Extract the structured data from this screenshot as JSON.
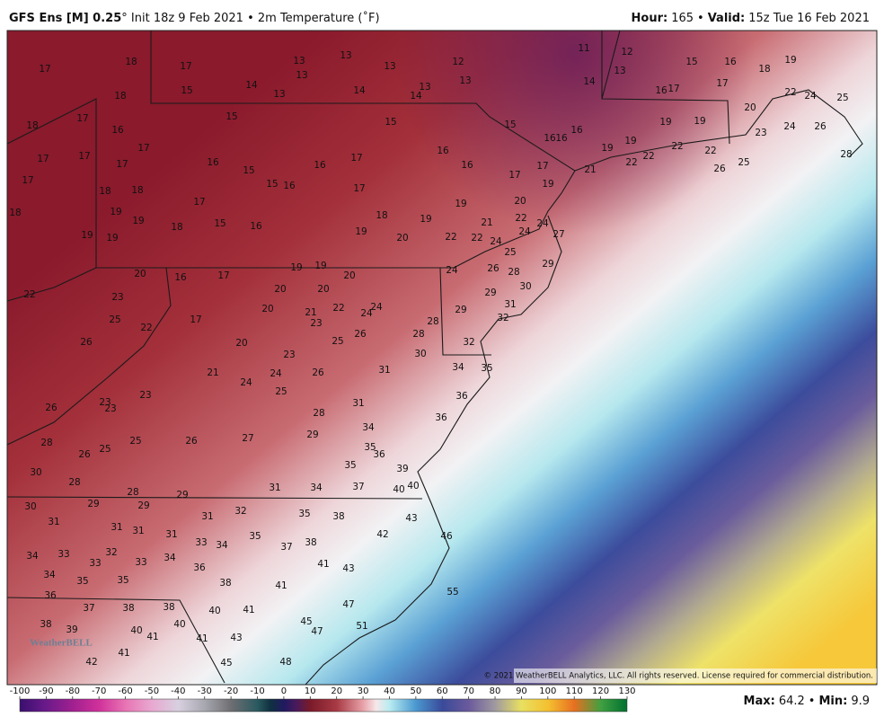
{
  "header": {
    "model": "GFS Ens [M] 0.25",
    "title": "° Init 18z 9 Feb 2021 • 2m Temperature (˚F)",
    "hour_label": "Hour:",
    "hour_value": "165",
    "separator": "•",
    "valid_label": "Valid:",
    "valid_value": "15z Tue 16 Feb 2021"
  },
  "map_labels": [
    17,
    18,
    17,
    15,
    14,
    13,
    13,
    13,
    13,
    13,
    14,
    14,
    13,
    12,
    13,
    11,
    12,
    13,
    14,
    15,
    16,
    18,
    19,
    17,
    17,
    16,
    22,
    24,
    25,
    18,
    17,
    16,
    18,
    17,
    15,
    15,
    15,
    16,
    16,
    16,
    19,
    19,
    20,
    24,
    26,
    23,
    17,
    17,
    17,
    16,
    15,
    16,
    17,
    16,
    16,
    17,
    17,
    19,
    21,
    19,
    19,
    22,
    22,
    22,
    22,
    25,
    26,
    28,
    17,
    18,
    18,
    17,
    15,
    16,
    17,
    18,
    19,
    19,
    15,
    16,
    18,
    19,
    19,
    21,
    20,
    22,
    24,
    19,
    19,
    18,
    19,
    20,
    22,
    22,
    24,
    25,
    27,
    24,
    20,
    16,
    17,
    19,
    19,
    20,
    24,
    26,
    28,
    29,
    22,
    23,
    20,
    20,
    29,
    30,
    31,
    25,
    22,
    17,
    20,
    21,
    22,
    23,
    24,
    24,
    28,
    28,
    29,
    32,
    26,
    20,
    23,
    25,
    26,
    30,
    32,
    21,
    24,
    24,
    26,
    31,
    34,
    35,
    25,
    23,
    23,
    23,
    26,
    31,
    36,
    28,
    36,
    28,
    25,
    25,
    26,
    27,
    29,
    34,
    26,
    35,
    36,
    35,
    39,
    30,
    28,
    28,
    29,
    29,
    29,
    31,
    34,
    37,
    40,
    40,
    30,
    31,
    31,
    31,
    31,
    32,
    35,
    38,
    43,
    31,
    33,
    34,
    35,
    42,
    46,
    34,
    33,
    32,
    33,
    33,
    34,
    36,
    37,
    38,
    41,
    43,
    34,
    35,
    35,
    38,
    41,
    36,
    55,
    37,
    38,
    38,
    40,
    41,
    47,
    38,
    39,
    40,
    40,
    45,
    51,
    41,
    41,
    43,
    47,
    41,
    42,
    45,
    48
  ],
  "logo": "WeatherBELL",
  "copyright": "© 2021 WeatherBELL Analytics, LLC. All rights reserved. License required for commercial distribution.",
  "colorbar": {
    "ticks": [
      -100,
      -90,
      -80,
      -70,
      -60,
      -50,
      -40,
      -30,
      -20,
      -10,
      0,
      10,
      20,
      30,
      40,
      50,
      60,
      70,
      80,
      90,
      100,
      110,
      120,
      130
    ]
  },
  "stats": {
    "max_label": "Max:",
    "max": "64.2",
    "min_label": "Min:",
    "min": "9.9"
  }
}
